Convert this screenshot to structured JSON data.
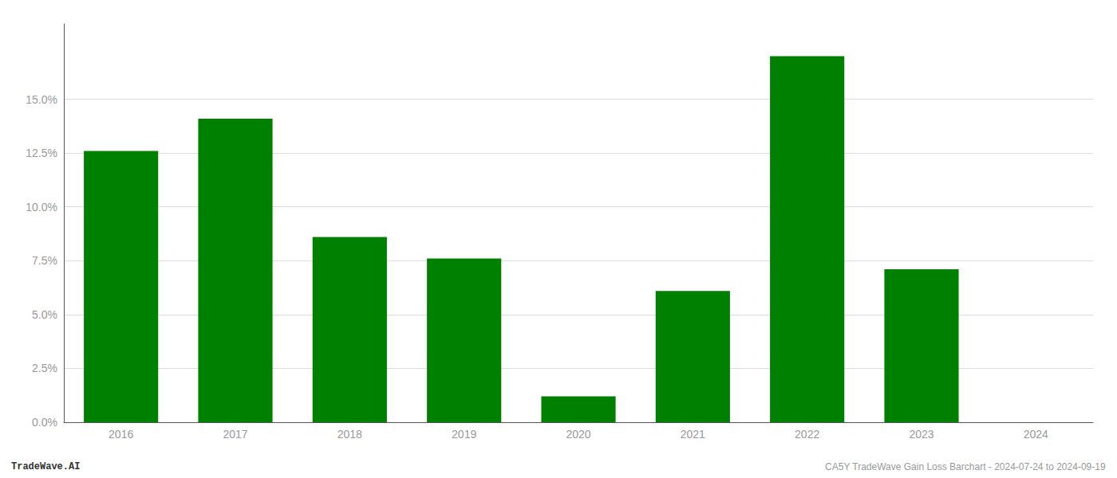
{
  "chart_data": {
    "type": "bar",
    "categories": [
      "2016",
      "2017",
      "2018",
      "2019",
      "2020",
      "2021",
      "2022",
      "2023",
      "2024"
    ],
    "values": [
      0.126,
      0.141,
      0.086,
      0.076,
      0.012,
      0.061,
      0.17,
      0.071,
      0.0
    ],
    "color": "#008000",
    "ylim": [
      0,
      0.185
    ],
    "yticks": [
      {
        "value": 0.0,
        "label": "0.0%"
      },
      {
        "value": 0.025,
        "label": "2.5%"
      },
      {
        "value": 0.05,
        "label": "5.0%"
      },
      {
        "value": 0.075,
        "label": "7.5%"
      },
      {
        "value": 0.1,
        "label": "10.0%"
      },
      {
        "value": 0.125,
        "label": "12.5%"
      },
      {
        "value": 0.15,
        "label": "15.0%"
      }
    ],
    "grid": true,
    "annotations": [
      "TradeWave.AI",
      "CA5Y TradeWave Gain Loss Barchart - 2024-07-24 to 2024-09-19"
    ]
  }
}
